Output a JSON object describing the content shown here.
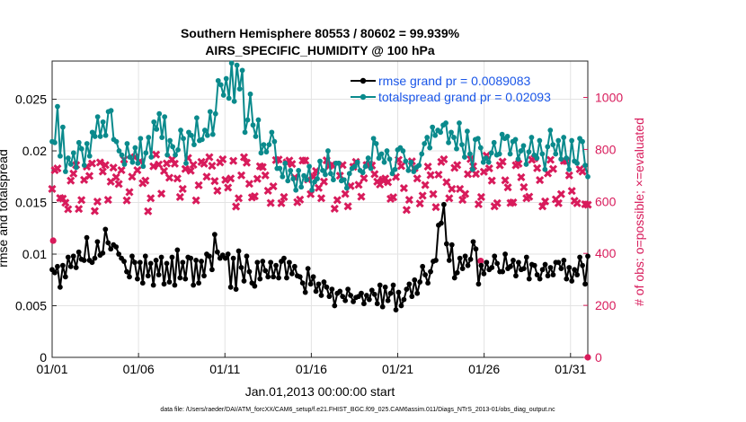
{
  "chart_data": {
    "type": "line",
    "title": "Southern Hemisphere 80553 / 80602 = 99.939%",
    "subtitle": "AIRS_SPECIFIC_HUMIDITY @ 100 hPa",
    "xlabel": "Jan.01,2013 00:00:00 start",
    "ylabel": "rmse and totalspread",
    "ylabel_right": "# of obs: o=possible; ×=evaluated",
    "x_ticks": [
      "01/01",
      "01/06",
      "01/11",
      "01/16",
      "01/21",
      "01/26",
      "01/31"
    ],
    "x_tick_days": [
      1,
      6,
      11,
      16,
      21,
      26,
      31
    ],
    "xlim": [
      1,
      32
    ],
    "y_ticks": [
      "0",
      "0.005",
      "0.01",
      "0.015",
      "0.02",
      "0.025"
    ],
    "ylim": [
      0,
      0.0287
    ],
    "y_right_ticks": [
      "0",
      "200",
      "400",
      "600",
      "800",
      "1000"
    ],
    "ylim_right": [
      0,
      1140
    ],
    "grid": true,
    "legend_position": "top-right",
    "footnote": "data file: /Users/raeder/DAI/ATM_forcXX/CAM6_setup/f.e21.FHIST_BGC.f09_025.CAM6assim.011/Diags_NTrS_2013-01/obs_diag_output.nc",
    "colors": {
      "rmse": "#000000",
      "totalspread": "#0a8a8c",
      "obs": "#d81b5b",
      "legend_text": "#1a56e8",
      "right_axis": "#d81b5b",
      "grid": "#e3e3e3"
    },
    "series": [
      {
        "name": "rmse grand pr = 0.0089083",
        "marker": "circle",
        "axis": "left",
        "values": [
          0.0085,
          0.0082,
          0.0088,
          0.0068,
          0.0089,
          0.0078,
          0.0097,
          0.0088,
          0.0098,
          0.0087,
          0.0102,
          0.0095,
          0.0094,
          0.0116,
          0.0094,
          0.0092,
          0.0096,
          0.0112,
          0.0099,
          0.0101,
          0.0124,
          0.0111,
          0.0105,
          0.0109,
          0.0107,
          0.01,
          0.0096,
          0.0093,
          0.0083,
          0.0078,
          0.0098,
          0.0092,
          0.0076,
          0.0092,
          0.0072,
          0.0098,
          0.0079,
          0.0091,
          0.007,
          0.0094,
          0.008,
          0.0097,
          0.0071,
          0.0091,
          0.0073,
          0.0097,
          0.007,
          0.0104,
          0.0077,
          0.0092,
          0.0076,
          0.0097,
          0.0096,
          0.007,
          0.0094,
          0.0072,
          0.0093,
          0.0079,
          0.01,
          0.0098,
          0.0085,
          0.0119,
          0.0102,
          0.0096,
          0.0099,
          0.0096,
          0.01,
          0.0068,
          0.0096,
          0.0066,
          0.0103,
          0.0087,
          0.0074,
          0.0098,
          0.0083,
          0.0072,
          0.0069,
          0.0092,
          0.0076,
          0.0093,
          0.0084,
          0.0078,
          0.0092,
          0.0078,
          0.0089,
          0.0077,
          0.0093,
          0.0096,
          0.0077,
          0.0092,
          0.0081,
          0.0088,
          0.0079,
          0.0078,
          0.0072,
          0.0063,
          0.0086,
          0.0071,
          0.0078,
          0.0064,
          0.0071,
          0.006,
          0.0073,
          0.0068,
          0.0059,
          0.0066,
          0.005,
          0.0062,
          0.0064,
          0.0059,
          0.0055,
          0.0066,
          0.006,
          0.0054,
          0.0058,
          0.0059,
          0.0062,
          0.0052,
          0.006,
          0.0056,
          0.0065,
          0.0061,
          0.0052,
          0.007,
          0.0049,
          0.0068,
          0.0055,
          0.0062,
          0.007,
          0.0046,
          0.0063,
          0.005,
          0.0056,
          0.0066,
          0.0071,
          0.0059,
          0.0075,
          0.0062,
          0.0073,
          0.0088,
          0.008,
          0.0072,
          0.0083,
          0.0093,
          0.0094,
          0.0128,
          0.013,
          0.0148,
          0.011,
          0.0094,
          0.0109,
          0.0077,
          0.0082,
          0.0096,
          0.0086,
          0.0098,
          0.0089,
          0.0095,
          0.0112,
          0.0105,
          0.0071,
          0.0089,
          0.0081,
          0.0092,
          0.0085,
          0.0087,
          0.0098,
          0.0091,
          0.0083,
          0.0083,
          0.01,
          0.0086,
          0.0088,
          0.0094,
          0.0079,
          0.0092,
          0.0085,
          0.0086,
          0.0097,
          0.0076,
          0.009,
          0.0089,
          0.008,
          0.0076,
          0.0085,
          0.009,
          0.0079,
          0.0087,
          0.008,
          0.0092,
          0.0092,
          0.0086,
          0.0094,
          0.0076,
          0.0087,
          0.0074,
          0.0085,
          0.008,
          0.0097,
          0.0089,
          0.0071,
          0.0098
        ]
      },
      {
        "name": "totalspread grand pr = 0.02093",
        "marker": "circle",
        "axis": "left",
        "values": [
          0.0209,
          0.0208,
          0.0243,
          0.0195,
          0.0223,
          0.018,
          0.0193,
          0.0187,
          0.0198,
          0.0184,
          0.0208,
          0.0202,
          0.0186,
          0.0207,
          0.0195,
          0.0218,
          0.0214,
          0.0233,
          0.0214,
          0.0228,
          0.0215,
          0.0238,
          0.0239,
          0.0211,
          0.0209,
          0.02,
          0.0196,
          0.0187,
          0.0207,
          0.0194,
          0.0189,
          0.0203,
          0.0188,
          0.0212,
          0.0185,
          0.0198,
          0.0213,
          0.0194,
          0.0228,
          0.0221,
          0.0236,
          0.0213,
          0.0233,
          0.0196,
          0.021,
          0.0204,
          0.0196,
          0.0201,
          0.022,
          0.0212,
          0.0188,
          0.0218,
          0.0215,
          0.0206,
          0.0232,
          0.021,
          0.0211,
          0.022,
          0.0215,
          0.0238,
          0.0216,
          0.0236,
          0.0268,
          0.0264,
          0.0254,
          0.027,
          0.0251,
          0.0285,
          0.0248,
          0.0283,
          0.026,
          0.0278,
          0.0218,
          0.023,
          0.0255,
          0.0225,
          0.0214,
          0.023,
          0.0198,
          0.0206,
          0.0199,
          0.0206,
          0.0218,
          0.0209,
          0.0183,
          0.0183,
          0.0175,
          0.0188,
          0.0171,
          0.0181,
          0.0173,
          0.0162,
          0.0181,
          0.0165,
          0.0176,
          0.0172,
          0.0185,
          0.0162,
          0.017,
          0.0173,
          0.019,
          0.0181,
          0.0177,
          0.02,
          0.0178,
          0.0172,
          0.0188,
          0.0188,
          0.0171,
          0.0172,
          0.0164,
          0.0178,
          0.0183,
          0.0185,
          0.0189,
          0.0181,
          0.0179,
          0.0185,
          0.0193,
          0.0183,
          0.0212,
          0.0207,
          0.0193,
          0.0197,
          0.0189,
          0.02,
          0.0192,
          0.0178,
          0.0182,
          0.0201,
          0.0203,
          0.02,
          0.019,
          0.0181,
          0.0189,
          0.018,
          0.0184,
          0.0186,
          0.0197,
          0.0207,
          0.0213,
          0.0203,
          0.0223,
          0.0215,
          0.022,
          0.0218,
          0.0225,
          0.0227,
          0.0208,
          0.0218,
          0.0213,
          0.0202,
          0.0227,
          0.0206,
          0.0194,
          0.0219,
          0.0197,
          0.0182,
          0.0211,
          0.0212,
          0.0203,
          0.0189,
          0.0193,
          0.0189,
          0.0198,
          0.0208,
          0.0196,
          0.0197,
          0.0216,
          0.0212,
          0.0214,
          0.0197,
          0.0209,
          0.0211,
          0.0192,
          0.02,
          0.0205,
          0.0187,
          0.0199,
          0.0213,
          0.0196,
          0.0193,
          0.021,
          0.0197,
          0.0182,
          0.0204,
          0.022,
          0.0206,
          0.0197,
          0.021,
          0.0192,
          0.0213,
          0.0193,
          0.0182,
          0.021,
          0.019,
          0.0188,
          0.0212,
          0.0209,
          0.0186,
          0.0175
        ]
      },
      {
        "name": "evaluated",
        "marker": "x",
        "axis": "right",
        "values": [
          648,
          720,
          727,
          613,
          611,
          595,
          570,
          680,
          707,
          740,
          571,
          605,
          683,
          734,
          698,
          746,
          563,
          599,
          750,
          715,
          740,
          606,
          676,
          730,
          693,
          667,
          720,
          761,
          604,
          636,
          695,
          770,
          720,
          754,
          670,
          680,
          562,
          612,
          735,
          780,
          742,
          630,
          717,
          746,
          691,
          761,
          745,
          688,
          617,
          648,
          725,
          767,
          718,
          741,
          604,
          662,
          752,
          745,
          695,
          770,
          737,
          678,
          641,
          750,
          762,
          683,
          653,
          688,
          756,
          580,
          612,
          700,
          770,
          749,
          668,
          615,
          620,
          687,
          735,
          732,
          700,
          641,
          594,
          658,
          759,
          761,
          593,
          617,
          750,
          757,
          744,
          692,
          597,
          607,
          757,
          757,
          684,
          628,
          695,
          717,
          652,
          612,
          676,
          758,
          737,
          741,
          572,
          605,
          699,
          740,
          629,
          581,
          659,
          733,
          752,
          664,
          618,
          689,
          740,
          744,
          738,
          705,
          676,
          665,
          683,
          688,
          674,
          610,
          616,
          694,
          760,
          736,
          651,
          567,
          606,
          754,
          728,
          688,
          592,
          622,
          663,
          734,
          701,
          628,
          578,
          703,
          752,
          762,
          674,
          612,
          648,
          729,
          740,
          648,
          606,
          629,
          705,
          763,
          735,
          706,
          589,
          617,
          714,
          776,
          727,
          680,
          581,
          593,
          739,
          753,
          681,
          654,
          594,
          596,
          739,
          745,
          693,
          655,
          612,
          618,
          760,
          766,
          728,
          682,
          581,
          600,
          708,
          760,
          725,
          608,
          593,
          628,
          756,
          755,
          700,
          640,
          602,
          593,
          724,
          715,
          589,
          587
        ]
      },
      {
        "name": "possible",
        "marker": "o",
        "axis": "right",
        "values": [
          {
            "x": 1.06,
            "y": 449
          },
          {
            "x": 25.8,
            "y": 371
          },
          {
            "x": 32.0,
            "y": 0
          }
        ]
      }
    ]
  }
}
